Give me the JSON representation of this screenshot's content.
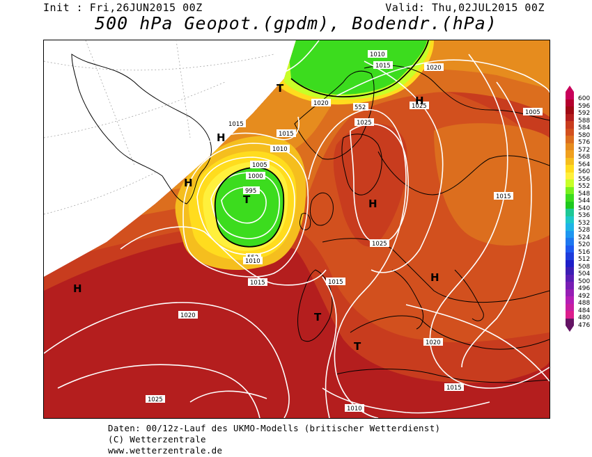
{
  "header": {
    "init": "Init : Fri,26JUN2015 00Z",
    "valid": "Valid: Thu,02JUL2015 00Z",
    "title": "500 hPa Geopot.(gpdm), Bodendr.(hPa)"
  },
  "legend": {
    "levels": [
      "600",
      "596",
      "592",
      "588",
      "584",
      "580",
      "576",
      "572",
      "568",
      "564",
      "560",
      "556",
      "552",
      "548",
      "544",
      "540",
      "536",
      "532",
      "528",
      "524",
      "520",
      "516",
      "512",
      "508",
      "504",
      "500",
      "496",
      "492",
      "488",
      "484",
      "480",
      "476"
    ],
    "colors": [
      "#c8005a",
      "#b4002d",
      "#a00a14",
      "#b41e1e",
      "#c83c1e",
      "#d2501e",
      "#dc6e1e",
      "#e68c1e",
      "#f0a01e",
      "#f5be1e",
      "#ffdc1e",
      "#fff03c",
      "#c8ff28",
      "#78f01e",
      "#3cdc1e",
      "#1ec81e",
      "#1ec896",
      "#1ec8c8",
      "#1eb4e6",
      "#1e96f0",
      "#1e78f0",
      "#1e5af0",
      "#1e3cdc",
      "#1e1ec8",
      "#3c1eb4",
      "#5a1eb4",
      "#781eb4",
      "#961eb4",
      "#b41eb4",
      "#c81ea0",
      "#dc1e8c",
      "#641464"
    ]
  },
  "pressure_labels": {
    "p1010a": "1010",
    "p1015a": "1015",
    "p1020a": "1020",
    "p1025a": "1025",
    "p1015b": "1015",
    "p1015c": "1015",
    "p1010b": "1010",
    "p1005a": "1005",
    "p1000": "1000",
    "p995": "995",
    "p552a": "552",
    "p1010c": "1010",
    "p1015d": "1015",
    "p1020b": "1020",
    "p1025b": "1025",
    "p1015e": "1015",
    "p1020c": "1020",
    "p1015f": "1015",
    "p1010d": "1010",
    "p1025c": "1025",
    "p1005b": "1005",
    "p1015g": "1015",
    "p552b": "552",
    "p1020d": "1020",
    "p1025d": "1025"
  },
  "centers": {
    "high": "H",
    "low": "T"
  },
  "footer": {
    "line1": "Daten: 00/12z-Lauf des UKMO-Modells (britischer Wetterdienst)",
    "line2": "(C) Wetterzentrale",
    "line3": "www.wetterzentrale.de"
  }
}
